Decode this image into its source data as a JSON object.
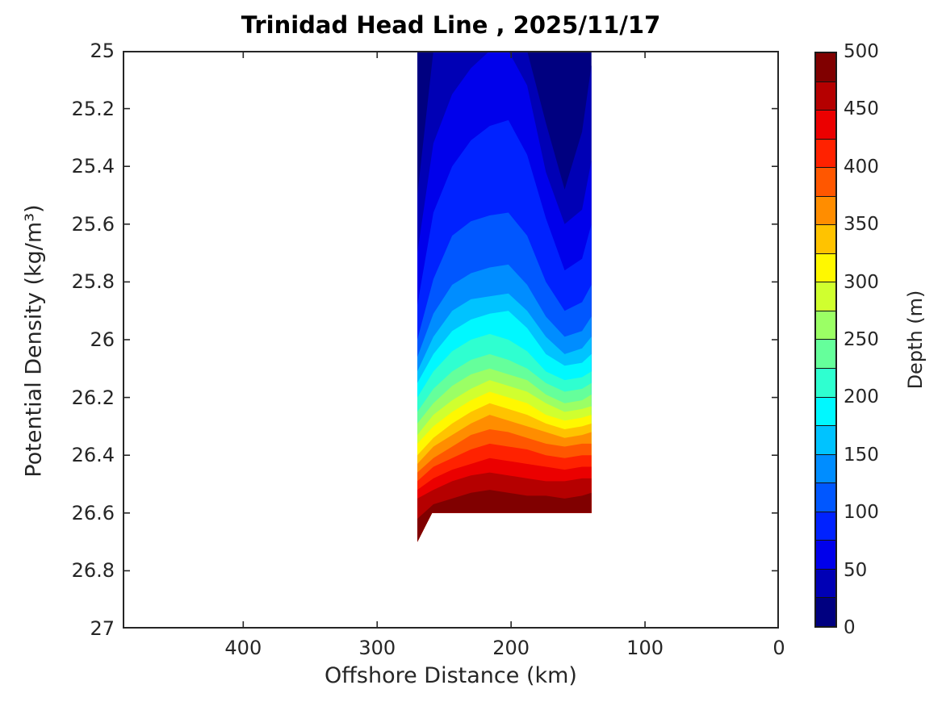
{
  "title": "Trinidad Head Line , 2025/11/17",
  "colors": {
    "title_text": "#000000",
    "axis_text": "#262626",
    "axis_line": "#262626",
    "background": "#ffffff"
  },
  "chart_data": {
    "type": "filled_contour",
    "title": "Trinidad Head Line , 2025/11/17",
    "xlabel": "Offshore Distance (km)",
    "ylabel": "Potential Density (kg/m³)",
    "colorbar_label": "Depth (m)",
    "x_axis_reversed": true,
    "xlim": [
      490,
      0
    ],
    "ylim": [
      25,
      27
    ],
    "x_ticks": [
      400,
      300,
      200,
      100,
      0
    ],
    "y_ticks": [
      25,
      25.2,
      25.4,
      25.6,
      25.8,
      26,
      26.2,
      26.4,
      26.6,
      26.8,
      27
    ],
    "colorbar_ticks": [
      0,
      50,
      100,
      150,
      200,
      250,
      300,
      350,
      400,
      450,
      500
    ],
    "depth_levels_m": [
      0,
      25,
      50,
      75,
      100,
      125,
      150,
      175,
      200,
      225,
      250,
      275,
      300,
      325,
      350,
      375,
      400,
      425,
      450,
      475,
      500
    ],
    "jet_colors": [
      "#000080",
      "#0000B5",
      "#0000EB",
      "#0022FF",
      "#0057FF",
      "#008DFF",
      "#00C3FF",
      "#00F8FF",
      "#2FFFD0",
      "#65FF9B",
      "#9BFF65",
      "#D0FF2F",
      "#FFF800",
      "#FFC300",
      "#FF8D00",
      "#FF5700",
      "#FF2200",
      "#EB0000",
      "#B50000",
      "#800000"
    ],
    "grid": false,
    "data_extent_km": [
      270,
      140
    ],
    "data_extent_density": [
      25.0,
      26.7
    ],
    "stations_km": [
      270,
      258,
      244,
      230,
      216,
      202,
      188,
      174,
      160,
      147,
      140
    ],
    "isopleth_depths_m": [
      25,
      50,
      75,
      100,
      125,
      150,
      175,
      200,
      225,
      250,
      275,
      300,
      325,
      350,
      375,
      400,
      425,
      450,
      475
    ],
    "boundaries_density": [
      [
        25.5,
        25.0,
        24.88,
        24.85,
        24.84,
        24.86,
        24.95,
        25.25,
        25.48,
        25.28,
        25.05
      ],
      [
        25.7,
        25.32,
        25.15,
        25.06,
        25.0,
        24.97,
        25.12,
        25.42,
        25.6,
        25.55,
        25.38
      ],
      [
        25.88,
        25.56,
        25.4,
        25.31,
        25.26,
        25.24,
        25.36,
        25.58,
        25.76,
        25.72,
        25.6
      ],
      [
        26.0,
        25.79,
        25.64,
        25.59,
        25.57,
        25.56,
        25.64,
        25.8,
        25.9,
        25.87,
        25.81
      ],
      [
        26.06,
        25.91,
        25.81,
        25.77,
        25.75,
        25.74,
        25.81,
        25.92,
        25.99,
        25.97,
        25.92
      ],
      [
        26.11,
        25.99,
        25.9,
        25.86,
        25.85,
        25.84,
        25.9,
        25.99,
        26.05,
        26.03,
        25.99
      ],
      [
        26.15,
        26.05,
        25.97,
        25.93,
        25.91,
        25.9,
        25.96,
        26.05,
        26.09,
        26.08,
        26.05
      ],
      [
        26.2,
        26.11,
        26.04,
        26.0,
        25.98,
        26.0,
        26.04,
        26.11,
        26.14,
        26.13,
        26.11
      ],
      [
        26.25,
        26.17,
        26.11,
        26.07,
        26.05,
        26.07,
        26.1,
        26.15,
        26.18,
        26.17,
        26.15
      ],
      [
        26.29,
        26.22,
        26.16,
        26.12,
        26.1,
        26.12,
        26.14,
        26.19,
        26.22,
        26.21,
        26.19
      ],
      [
        26.33,
        26.26,
        26.21,
        26.17,
        26.14,
        26.16,
        26.18,
        26.22,
        26.25,
        26.24,
        26.23
      ],
      [
        26.36,
        26.3,
        26.25,
        26.21,
        26.18,
        26.2,
        26.22,
        26.26,
        26.28,
        26.27,
        26.26
      ],
      [
        26.4,
        26.34,
        26.29,
        26.25,
        26.22,
        26.24,
        26.26,
        26.29,
        26.31,
        26.3,
        26.29
      ],
      [
        26.43,
        26.37,
        26.33,
        26.29,
        26.26,
        26.28,
        26.3,
        26.32,
        26.34,
        26.33,
        26.32
      ],
      [
        26.46,
        26.41,
        26.37,
        26.33,
        26.31,
        26.32,
        26.34,
        26.36,
        26.37,
        26.36,
        26.36
      ],
      [
        26.49,
        26.44,
        26.41,
        26.38,
        26.36,
        26.37,
        26.38,
        26.4,
        26.41,
        26.4,
        26.4
      ],
      [
        26.52,
        26.48,
        26.45,
        26.43,
        26.41,
        26.42,
        26.43,
        26.44,
        26.45,
        26.44,
        26.44
      ],
      [
        26.55,
        26.52,
        26.49,
        26.47,
        26.46,
        26.47,
        26.48,
        26.49,
        26.49,
        26.48,
        26.48
      ],
      [
        26.62,
        26.57,
        26.55,
        26.53,
        26.52,
        26.53,
        26.54,
        26.54,
        26.55,
        26.54,
        26.53
      ]
    ],
    "bottom_edge": [
      [
        270,
        26.7
      ],
      [
        259,
        26.6
      ],
      [
        140,
        26.6
      ]
    ]
  }
}
